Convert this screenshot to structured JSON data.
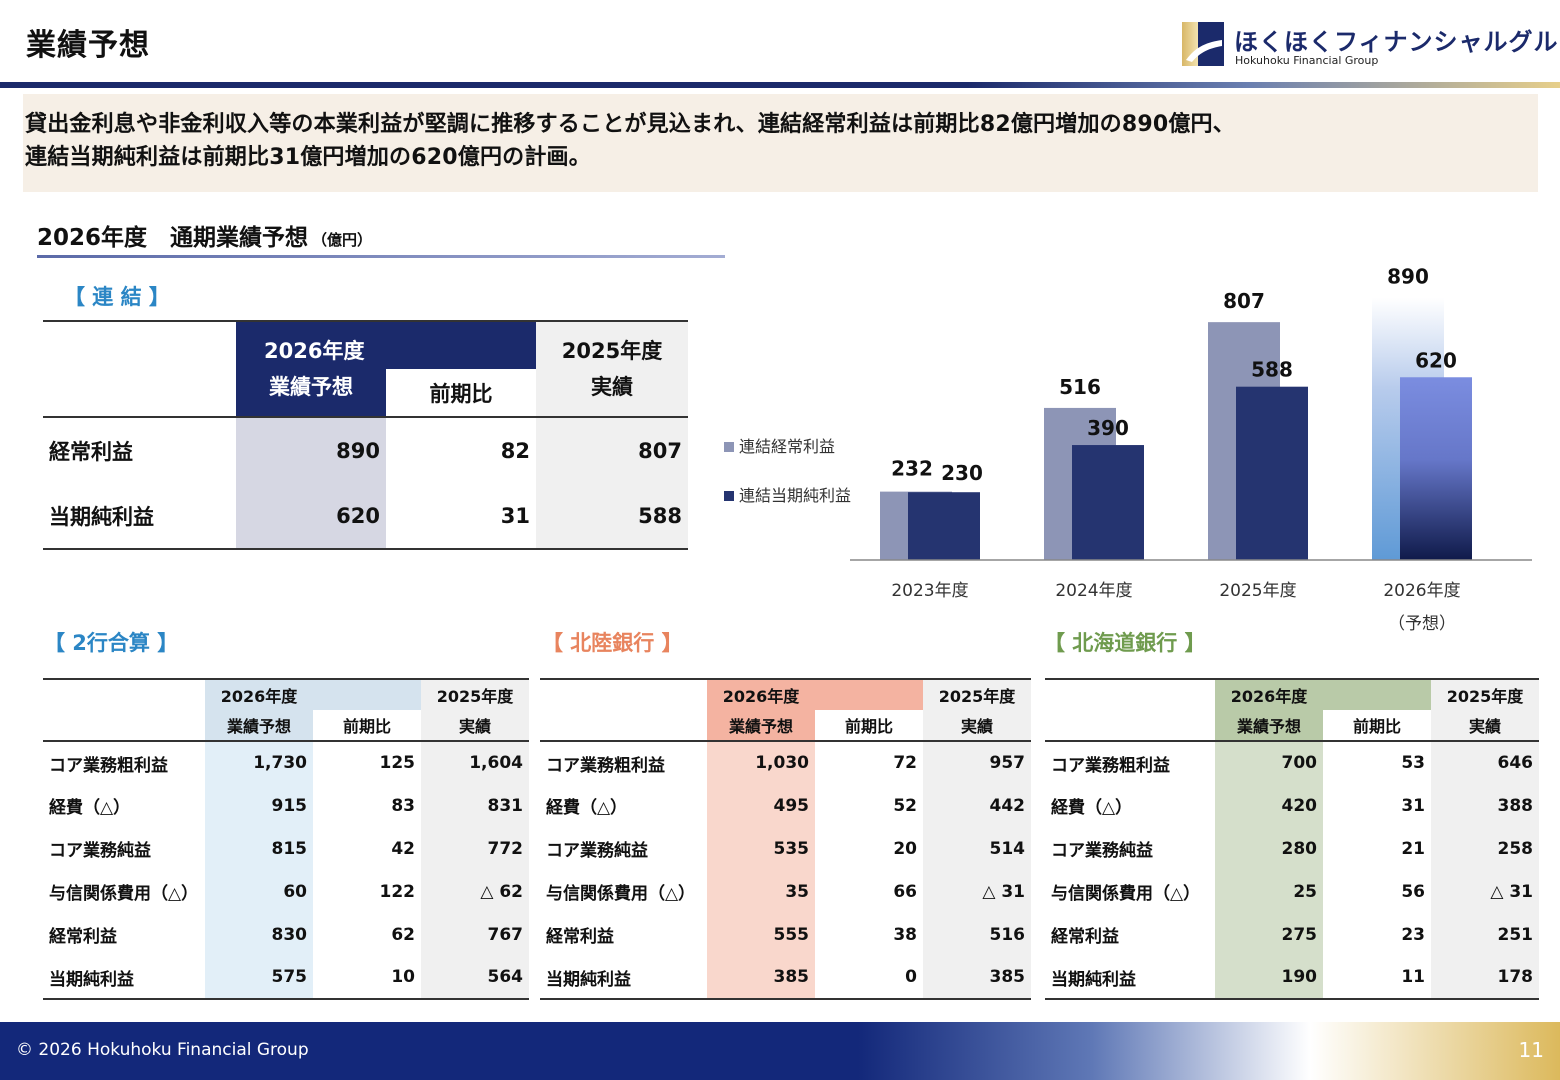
{
  "header": {
    "title": "業績予想",
    "logo_jp": "ほくほくフィナンシャルグループ",
    "logo_en": "Hokuhoku Financial Group"
  },
  "summary": {
    "line1": "貸出金利息や非金利収入等の本業利益が堅調に推移することが見込まれ、連結経常利益は前期比82億円増加の890億円、",
    "line2": "連結当期純利益は前期比31億円増加の620億円の計画。"
  },
  "section": {
    "title": "2026年度　通期業績予想",
    "unit": "（億円）"
  },
  "consolidated": {
    "label": "【 連 結 】",
    "hdr_fy_top": "2026年度",
    "hdr_fy_sub": "業績予想",
    "hdr_yoy": "前期比",
    "hdr_prev_top": "2025年度",
    "hdr_prev_sub": "実績",
    "rows": [
      {
        "label": "経常利益",
        "forecast": "890",
        "yoy": "82",
        "prev": "807"
      },
      {
        "label": "当期純利益",
        "forecast": "620",
        "yoy": "31",
        "prev": "588"
      }
    ]
  },
  "chart_data": {
    "type": "bar",
    "categories": [
      "2023年度",
      "2024年度",
      "2025年度",
      "2026年度"
    ],
    "category_sublabels": [
      "",
      "",
      "",
      "（予想）"
    ],
    "series": [
      {
        "name": "連結経常利益",
        "values": [
          232,
          516,
          807,
          890
        ],
        "color": "#8d95b6"
      },
      {
        "name": "連結当期純利益",
        "values": [
          230,
          390,
          588,
          620
        ],
        "color": "#253470"
      }
    ],
    "forecast_colors": {
      "ordinary": "#a9c0e6",
      "net": "#7487d8"
    },
    "legend_position": "left",
    "grid": false,
    "ylim": [
      0,
      950
    ]
  },
  "tables": [
    {
      "key": "combined",
      "label": "【 2行合算 】",
      "label_color": "#2b86c5",
      "accent_header": "#d5e3ee",
      "accent_col": "#e2eff8",
      "hdr_fy_top": "2026年度",
      "hdr_fy_sub": "業績予想",
      "hdr_yoy": "前期比",
      "hdr_prev_top": "2025年度",
      "hdr_prev_sub": "実績",
      "rows": [
        {
          "label": "コア業務粗利益",
          "forecast": "1,730",
          "yoy": "125",
          "prev": "1,604"
        },
        {
          "label": "経費（△）",
          "forecast": "915",
          "yoy": "83",
          "prev": "831"
        },
        {
          "label": "コア業務純益",
          "forecast": "815",
          "yoy": "42",
          "prev": "772"
        },
        {
          "label": "与信関係費用（△）",
          "forecast": "60",
          "yoy": "122",
          "prev": "△ 62"
        },
        {
          "label": "経常利益",
          "forecast": "830",
          "yoy": "62",
          "prev": "767"
        },
        {
          "label": "当期純利益",
          "forecast": "575",
          "yoy": "10",
          "prev": "564"
        }
      ]
    },
    {
      "key": "hokuriku",
      "label": "【 北陸銀行 】",
      "label_color": "#e8845e",
      "accent_header": "#f4b3a1",
      "accent_col": "#f9d7cc",
      "hdr_fy_top": "2026年度",
      "hdr_fy_sub": "業績予想",
      "hdr_yoy": "前期比",
      "hdr_prev_top": "2025年度",
      "hdr_prev_sub": "実績",
      "rows": [
        {
          "label": "コア業務粗利益",
          "forecast": "1,030",
          "yoy": "72",
          "prev": "957"
        },
        {
          "label": "経費（△）",
          "forecast": "495",
          "yoy": "52",
          "prev": "442"
        },
        {
          "label": "コア業務純益",
          "forecast": "535",
          "yoy": "20",
          "prev": "514"
        },
        {
          "label": "与信関係費用（△）",
          "forecast": "35",
          "yoy": "66",
          "prev": "△ 31"
        },
        {
          "label": "経常利益",
          "forecast": "555",
          "yoy": "38",
          "prev": "516"
        },
        {
          "label": "当期純利益",
          "forecast": "385",
          "yoy": "0",
          "prev": "385"
        }
      ]
    },
    {
      "key": "hokkaido",
      "label": "【 北海道銀行 】",
      "label_color": "#6f9b4e",
      "accent_header": "#b9caa8",
      "accent_col": "#d5dfcb",
      "hdr_fy_top": "2026年度",
      "hdr_fy_sub": "業績予想",
      "hdr_yoy": "前期比",
      "hdr_prev_top": "2025年度",
      "hdr_prev_sub": "実績",
      "rows": [
        {
          "label": "コア業務粗利益",
          "forecast": "700",
          "yoy": "53",
          "prev": "646"
        },
        {
          "label": "経費（△）",
          "forecast": "420",
          "yoy": "31",
          "prev": "388"
        },
        {
          "label": "コア業務純益",
          "forecast": "280",
          "yoy": "21",
          "prev": "258"
        },
        {
          "label": "与信関係費用（△）",
          "forecast": "25",
          "yoy": "56",
          "prev": "△ 31"
        },
        {
          "label": "経常利益",
          "forecast": "275",
          "yoy": "23",
          "prev": "251"
        },
        {
          "label": "当期純利益",
          "forecast": "190",
          "yoy": "11",
          "prev": "178"
        }
      ]
    }
  ],
  "footer": {
    "copyright": "© 2026 Hokuhoku Financial Group",
    "page": "11"
  }
}
